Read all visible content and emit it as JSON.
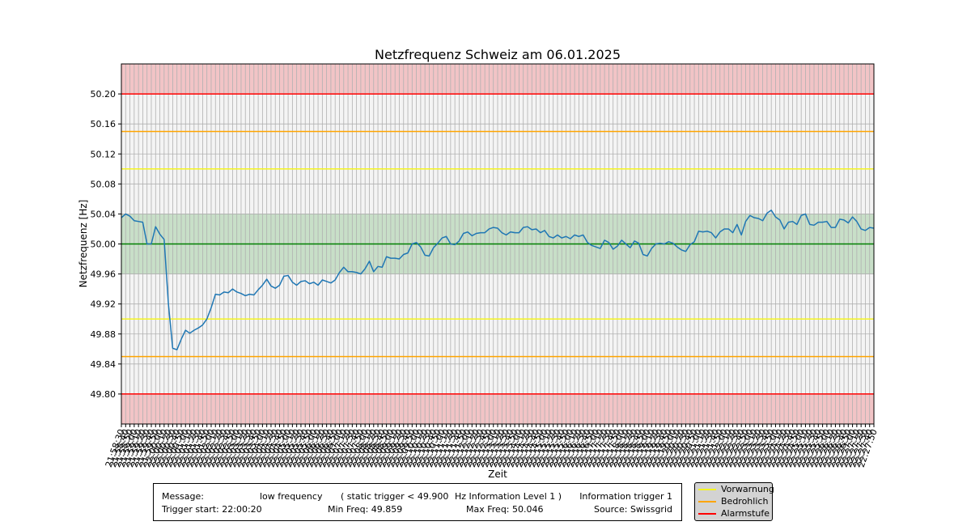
{
  "chart_data": {
    "type": "line",
    "title": "Netzfrequenz Schweiz am 06.01.2025",
    "xlabel": "Zeit",
    "ylabel": "Netzfrequenz [Hz]",
    "ylim": [
      49.76,
      50.24
    ],
    "yticks": [
      "49.80",
      "49.84",
      "49.88",
      "49.92",
      "49.96",
      "50.00",
      "50.04",
      "50.08",
      "50.12",
      "50.16",
      "50.20"
    ],
    "grid": true,
    "start_time": "21:58:30",
    "interval_seconds": 10,
    "xtick_labels": [
      "21:58:30",
      "21:58:40",
      "21:58:50",
      "21:59:00",
      "21:59:10",
      "21:59:20",
      "21:59:30",
      "21:59:40",
      "21:59:50",
      "22:00:00",
      "22:00:10",
      "22:00:20",
      "22:00:30",
      "22:00:40",
      "22:00:50",
      "22:01:00",
      "22:01:10",
      "22:01:20",
      "22:01:30",
      "22:01:40",
      "22:01:50",
      "22:02:00",
      "22:02:10",
      "22:02:20",
      "22:02:30",
      "22:02:40",
      "22:02:50",
      "22:03:00",
      "22:03:10",
      "22:03:20",
      "22:03:30",
      "22:03:40",
      "22:03:50",
      "22:04:00",
      "22:04:10",
      "22:04:20",
      "22:04:30",
      "22:04:40",
      "22:04:50",
      "22:05:00",
      "22:05:10",
      "22:05:20",
      "22:05:30",
      "22:05:40",
      "22:05:50",
      "22:06:00",
      "22:06:10",
      "22:06:20",
      "22:06:30",
      "22:06:40",
      "22:06:50",
      "22:07:00",
      "22:07:10",
      "22:07:20",
      "22:07:30",
      "22:07:40",
      "22:07:50",
      "22:08:00",
      "22:08:10",
      "22:08:20",
      "22:08:30",
      "22:08:40",
      "22:08:50",
      "22:09:00",
      "22:09:10",
      "22:09:20",
      "22:09:30",
      "22:09:40",
      "22:09:50",
      "22:10:00",
      "22:10:10",
      "22:10:20",
      "22:10:30",
      "22:10:40",
      "22:10:50",
      "22:11:00",
      "22:11:10",
      "22:11:20",
      "22:11:30",
      "22:11:40",
      "22:11:50",
      "22:12:00",
      "22:12:10",
      "22:12:20",
      "22:12:30",
      "22:12:40",
      "22:12:50",
      "22:13:00",
      "22:13:10",
      "22:13:20",
      "22:13:30",
      "22:13:40",
      "22:13:50",
      "22:14:00",
      "22:14:10",
      "22:14:20",
      "22:14:30",
      "22:14:40",
      "22:14:50",
      "22:15:00",
      "22:15:10",
      "22:15:20",
      "22:15:30",
      "22:15:40",
      "22:15:50",
      "22:16:00",
      "22:16:10",
      "22:16:20",
      "22:16:30",
      "22:16:40",
      "22:16:50",
      "22:17:00",
      "22:17:10",
      "22:17:20",
      "22:17:30",
      "22:17:40",
      "22:17:50",
      "22:18:00",
      "22:18:10",
      "22:18:20",
      "22:18:30",
      "22:18:40",
      "22:18:50",
      "22:19:00",
      "22:19:10",
      "22:19:20",
      "22:19:30",
      "22:19:40",
      "22:19:50",
      "22:20:00",
      "22:20:10",
      "22:20:20",
      "22:20:30",
      "22:20:40",
      "22:20:50",
      "22:21:00",
      "22:21:10",
      "22:21:20",
      "22:21:30",
      "22:21:40",
      "22:21:50",
      "22:22:00",
      "22:22:10",
      "22:22:20",
      "22:22:30",
      "22:22:40",
      "22:22:50",
      "22:23:00",
      "22:23:10",
      "22:23:20",
      "22:23:30",
      "22:23:40",
      "22:23:50",
      "22:24:00",
      "22:24:10",
      "22:24:20",
      "22:24:30",
      "22:24:40",
      "22:24:50",
      "22:25:00",
      "22:25:10",
      "22:25:20",
      "22:25:30",
      "22:25:40",
      "22:25:50",
      "22:26:00",
      "22:26:10",
      "22:26:20",
      "22:26:30",
      "22:26:40",
      "22:26:50",
      "22:27:00",
      "22:27:10",
      "22:27:20",
      "22:27:30",
      "22:27:40",
      "22:27:50"
    ],
    "series": [
      {
        "color": "#1f77b4",
        "values": [
          50.035,
          50.04,
          50.037,
          50.031,
          50.03,
          50.029,
          50.0,
          50.0,
          50.023,
          50.013,
          50.006,
          49.92,
          49.861,
          49.859,
          49.873,
          49.885,
          49.881,
          49.885,
          49.888,
          49.892,
          49.9,
          49.915,
          49.933,
          49.932,
          49.936,
          49.935,
          49.94,
          49.936,
          49.934,
          49.931,
          49.933,
          49.932,
          49.939,
          49.945,
          49.953,
          49.944,
          49.941,
          49.945,
          49.957,
          49.958,
          49.949,
          49.945,
          49.95,
          49.951,
          49.947,
          49.949,
          49.945,
          49.952,
          49.95,
          49.948,
          49.952,
          49.962,
          49.969,
          49.963,
          49.963,
          49.962,
          49.96,
          49.967,
          49.977,
          49.963,
          49.97,
          49.969,
          49.983,
          49.981,
          49.981,
          49.98,
          49.986,
          49.988,
          50.0,
          50.002,
          49.996,
          49.985,
          49.984,
          49.995,
          50.001,
          50.008,
          50.01,
          50.0,
          49.999,
          50.004,
          50.014,
          50.016,
          50.011,
          50.014,
          50.015,
          50.015,
          50.02,
          50.022,
          50.021,
          50.015,
          50.012,
          50.016,
          50.015,
          50.015,
          50.022,
          50.023,
          50.019,
          50.02,
          50.015,
          50.018,
          50.01,
          50.008,
          50.012,
          50.008,
          50.01,
          50.007,
          50.012,
          50.01,
          50.012,
          50.002,
          49.998,
          49.996,
          49.994,
          50.005,
          50.002,
          49.993,
          49.997,
          50.005,
          50.0,
          49.995,
          50.004,
          50.001,
          49.986,
          49.984,
          49.994,
          50.0,
          50.001,
          50.0,
          50.003,
          50.001,
          49.996,
          49.992,
          49.99,
          49.999,
          50.003,
          50.017,
          50.016,
          50.017,
          50.015,
          50.008,
          50.016,
          50.02,
          50.02,
          50.015,
          50.026,
          50.012,
          50.03,
          50.038,
          50.035,
          50.034,
          50.031,
          50.041,
          50.045,
          50.036,
          50.032,
          50.02,
          50.029,
          50.03,
          50.026,
          50.038,
          50.04,
          50.026,
          50.025,
          50.029,
          50.029,
          50.03,
          50.022,
          50.022,
          50.033,
          50.032,
          50.028,
          50.036,
          50.03,
          50.02,
          50.018,
          50.022,
          50.021
        ]
      }
    ],
    "bands": [
      {
        "from": 49.96,
        "to": 50.04,
        "color": "#c8dfc8"
      },
      {
        "from": 50.2,
        "to": 50.24,
        "color": "#f2c4c6"
      },
      {
        "from": 49.76,
        "to": 49.8,
        "color": "#f2c4c6"
      }
    ],
    "hlines": [
      {
        "value": 50.0,
        "color": "#008000"
      },
      {
        "value": 50.1,
        "color": "#f5f51f"
      },
      {
        "value": 49.9,
        "color": "#f5f51f"
      },
      {
        "value": 50.15,
        "color": "#ffa500"
      },
      {
        "value": 49.85,
        "color": "#ffa500"
      },
      {
        "value": 50.2,
        "color": "#ff0000"
      },
      {
        "value": 49.8,
        "color": "#ff0000"
      }
    ],
    "legend": {
      "placement": "bottom-right",
      "entries": [
        {
          "label": "Vorwarnung",
          "color": "#f5f51f"
        },
        {
          "label": "Bedrohlich",
          "color": "#ffa500"
        },
        {
          "label": "Alarmstufe",
          "color": "#ff0000"
        }
      ]
    }
  },
  "info": {
    "message_label": "Message:",
    "message_value": "low frequency",
    "trigger_text": "( static trigger < 49.900",
    "level_text": "Hz Information Level 1 )",
    "info_trigger": "Information trigger 1",
    "trigger_start": "Trigger start: 22:00:20",
    "min_freq": "Min Freq: 49.859",
    "max_freq": "Max Freq: 50.046",
    "source": "Source: Swissgrid"
  }
}
